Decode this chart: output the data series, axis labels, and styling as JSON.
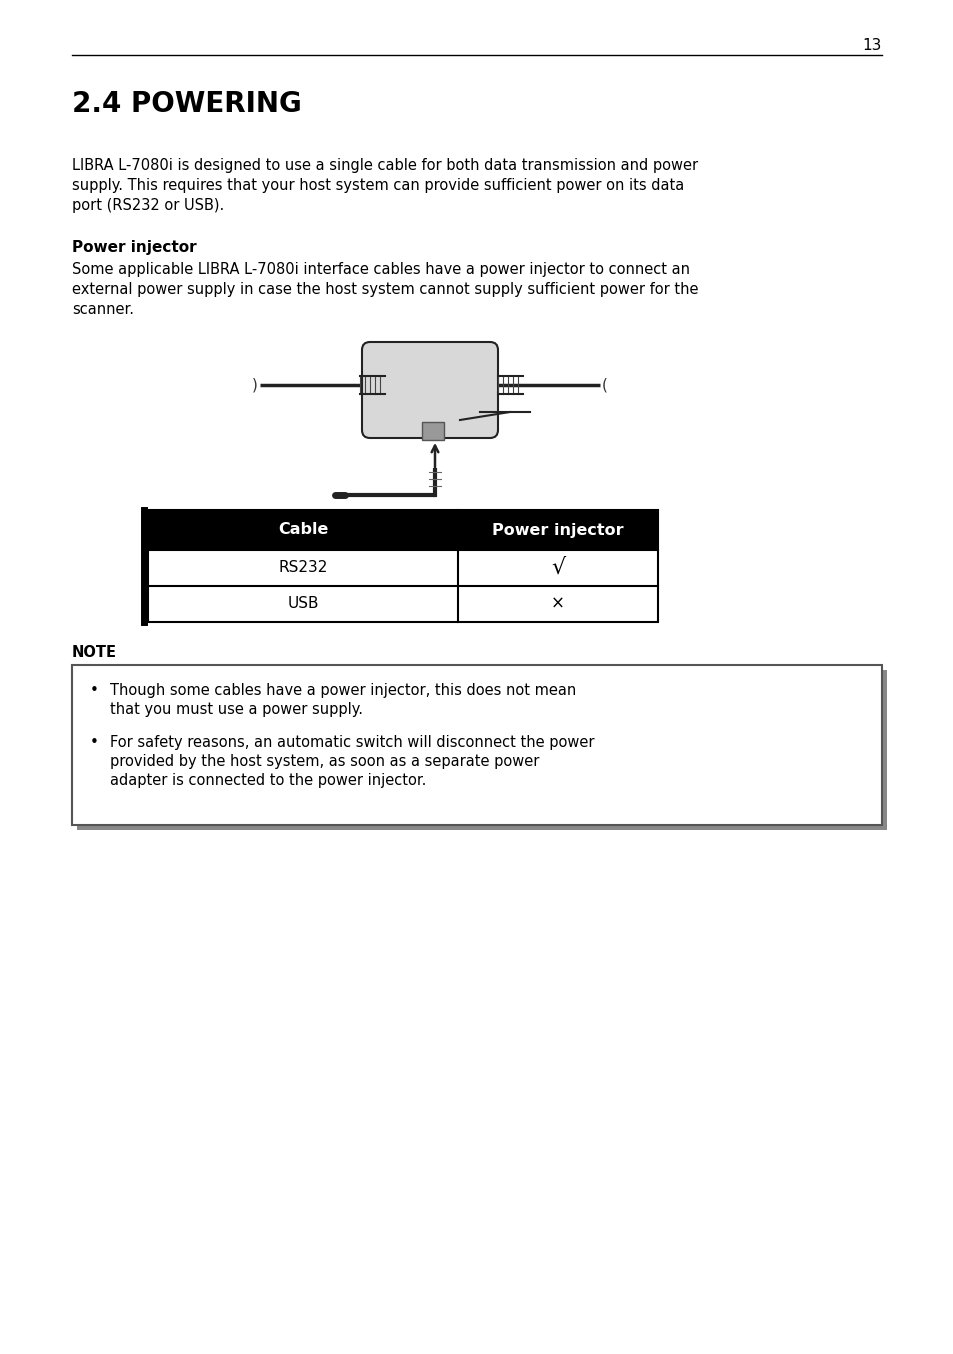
{
  "page_number": "13",
  "title": "2.4 POWERING",
  "paragraph1_lines": [
    "LIBRA L-7080i is designed to use a single cable for both data transmission and power",
    "supply. This requires that your host system can provide sufficient power on its data",
    "port (RS232 or USB)."
  ],
  "subtitle": "Power injector",
  "paragraph2_lines": [
    "Some applicable LIBRA L-7080i interface cables have a power injector to connect an",
    "external power supply in case the host system cannot supply sufficient power for the",
    "scanner."
  ],
  "table_header": [
    "Cable",
    "Power injector"
  ],
  "table_rows": [
    [
      "RS232",
      "√"
    ],
    [
      "USB",
      "×"
    ]
  ],
  "note_label": "NOTE",
  "note_bullet1_lines": [
    "Though some cables have a power injector, this does not mean",
    "that you must use a power supply."
  ],
  "note_bullet2_lines": [
    "For safety reasons, an automatic switch will disconnect the power",
    "provided by the host system, as soon as a separate power",
    "adapter is connected to the power injector."
  ],
  "bg_color": "#ffffff",
  "text_color": "#000000"
}
